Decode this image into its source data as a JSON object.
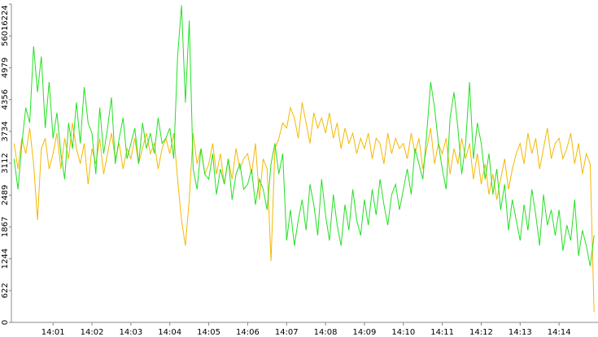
{
  "chart_data": {
    "type": "line",
    "x": [
      0,
      0.1,
      0.2,
      0.3,
      0.4,
      0.5,
      0.6,
      0.7,
      0.8,
      0.9,
      1,
      1.1,
      1.2,
      1.3,
      1.4,
      1.5,
      1.6,
      1.7,
      1.8,
      1.9,
      2,
      2.1,
      2.2,
      2.3,
      2.4,
      2.5,
      2.6,
      2.7,
      2.8,
      2.9,
      3,
      3.1,
      3.2,
      3.3,
      3.4,
      3.5,
      3.6,
      3.7,
      3.8,
      3.9,
      4,
      4.1,
      4.2,
      4.3,
      4.4,
      4.5,
      4.6,
      4.7,
      4.8,
      4.9,
      5,
      5.1,
      5.2,
      5.3,
      5.4,
      5.5,
      5.6,
      5.7,
      5.8,
      5.9,
      6,
      6.1,
      6.2,
      6.3,
      6.4,
      6.5,
      6.6,
      6.7,
      6.8,
      6.9,
      7,
      7.1,
      7.2,
      7.3,
      7.4,
      7.5,
      7.6,
      7.7,
      7.8,
      7.9,
      8,
      8.1,
      8.2,
      8.3,
      8.4,
      8.5,
      8.6,
      8.7,
      8.8,
      8.9,
      9,
      9.1,
      9.2,
      9.3,
      9.4,
      9.5,
      9.6,
      9.7,
      9.8,
      9.9,
      10,
      10.1,
      10.2,
      10.3,
      10.4,
      10.5,
      10.6,
      10.7,
      10.8,
      10.9,
      11,
      11.1,
      11.2,
      11.3,
      11.4,
      11.5,
      11.6,
      11.7,
      11.8,
      11.9,
      12,
      12.1,
      12.2,
      12.3,
      12.4,
      12.5,
      12.6,
      12.7,
      12.8,
      12.9,
      13,
      13.1,
      13.2,
      13.3,
      13.4,
      13.5,
      13.6,
      13.7,
      13.8,
      13.9,
      14,
      14.1,
      14.2,
      14.3,
      14.4,
      14.5,
      14.6,
      14.7,
      14.8,
      14.9
    ],
    "series": [
      {
        "color": "#f5b800",
        "values": [
          3500,
          3000,
          3600,
          3300,
          3800,
          3100,
          2000,
          3400,
          3600,
          3000,
          3300,
          3700,
          3000,
          3600,
          3200,
          3900,
          3400,
          3100,
          3500,
          2700,
          3400,
          3100,
          3600,
          2900,
          3300,
          3700,
          3200,
          3500,
          3000,
          3400,
          3200,
          3600,
          3100,
          3400,
          3700,
          3300,
          3500,
          3000,
          3400,
          3600,
          3300,
          3700,
          2800,
          2000,
          1500,
          2400,
          3700,
          3100,
          3400,
          2900,
          3100,
          3500,
          2900,
          3300,
          2700,
          3200,
          2800,
          3400,
          3000,
          3200,
          3300,
          2900,
          3500,
          2400,
          3200,
          3000,
          1200,
          3400,
          3600,
          3900,
          3800,
          4200,
          4000,
          3600,
          4300,
          3900,
          3500,
          4100,
          3800,
          4000,
          3700,
          4100,
          3600,
          3900,
          3400,
          3800,
          3500,
          3700,
          3300,
          3600,
          3400,
          3700,
          3200,
          3600,
          3500,
          3100,
          3700,
          3300,
          3600,
          3400,
          3500,
          3200,
          3700,
          3300,
          3600,
          3000,
          3400,
          3800,
          3100,
          3500,
          3300,
          3600,
          2900,
          3400,
          3100,
          3600,
          3200,
          3500,
          2800,
          3300,
          2700,
          3100,
          2500,
          2900,
          2400,
          2800,
          3200,
          2600,
          3000,
          3300,
          3500,
          3100,
          3700,
          3300,
          3600,
          3000,
          3400,
          3800,
          3200,
          3500,
          3600,
          3200,
          3400,
          3700,
          3100,
          3500,
          2900,
          3300,
          3100,
          200
        ]
      },
      {
        "color": "#22e022",
        "values": [
          3200,
          2600,
          3500,
          4200,
          3900,
          5400,
          4500,
          5200,
          3800,
          4700,
          3600,
          4100,
          3300,
          2800,
          3900,
          3400,
          4300,
          3500,
          4600,
          3900,
          3700,
          2900,
          4200,
          3300,
          3800,
          4400,
          3100,
          3600,
          4000,
          3200,
          3500,
          3800,
          3100,
          3900,
          3400,
          3700,
          3300,
          4000,
          3500,
          3600,
          3800,
          3200,
          5200,
          6200,
          4300,
          5900,
          3000,
          2600,
          3400,
          2900,
          2800,
          3300,
          2500,
          3000,
          2700,
          3200,
          2400,
          2900,
          3100,
          2600,
          2700,
          3000,
          2300,
          2800,
          2600,
          2200,
          3100,
          3500,
          2900,
          3300,
          1600,
          2200,
          1500,
          2000,
          2400,
          1800,
          2700,
          2300,
          1700,
          2800,
          2100,
          1600,
          2500,
          1900,
          1500,
          2300,
          1800,
          2600,
          2000,
          1700,
          2400,
          1900,
          2600,
          2100,
          2800,
          2300,
          1900,
          2500,
          2700,
          2200,
          2600,
          3000,
          2500,
          3400,
          3100,
          2800,
          3700,
          4700,
          4200,
          3500,
          3000,
          2600,
          4000,
          4500,
          3800,
          2900,
          3500,
          4700,
          3200,
          3900,
          3500,
          2800,
          3300,
          2500,
          3000,
          2200,
          2700,
          1800,
          2400,
          2000,
          1600,
          2300,
          1800,
          2600,
          2100,
          1500,
          2500,
          1900,
          2200,
          1700,
          2200,
          1400,
          1900,
          1600,
          2400,
          1300,
          1800,
          1500,
          1100,
          1700
        ]
      }
    ],
    "xlim": [
      -0.07,
      15
    ],
    "ylim": [
      0,
      6224
    ],
    "xticks": [
      {
        "value": 1,
        "label": "14:01"
      },
      {
        "value": 2,
        "label": "14:02"
      },
      {
        "value": 3,
        "label": "14:03"
      },
      {
        "value": 4,
        "label": "14:04"
      },
      {
        "value": 5,
        "label": "14:05"
      },
      {
        "value": 6,
        "label": "14:06"
      },
      {
        "value": 7,
        "label": "14:07"
      },
      {
        "value": 8,
        "label": "14:08"
      },
      {
        "value": 9,
        "label": "14:09"
      },
      {
        "value": 10,
        "label": "14:10"
      },
      {
        "value": 11,
        "label": "14:11"
      },
      {
        "value": 12,
        "label": "14:12"
      },
      {
        "value": 13,
        "label": "14:13"
      },
      {
        "value": 14,
        "label": "14:14"
      }
    ],
    "yticks": [
      0,
      622,
      1244,
      1867,
      2489,
      3112,
      3734,
      4356,
      4979,
      5601,
      6224
    ]
  }
}
